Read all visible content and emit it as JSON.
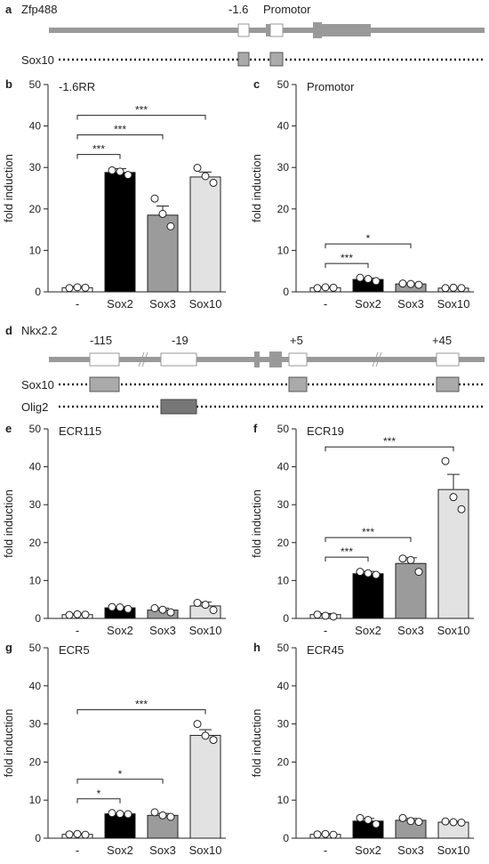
{
  "diagram_a": {
    "panel": "a",
    "gene": "Zfp488",
    "region_labels": [
      "-1.6",
      "Promotor"
    ],
    "factor": "Sox10"
  },
  "diagram_d": {
    "panel": "d",
    "gene": "Nkx2.2",
    "region_labels": [
      "-115",
      "-19",
      "+5",
      "+45"
    ],
    "factors": [
      "Sox10",
      "Olig2"
    ]
  },
  "colors": {
    "gene_line": "#999999",
    "sox10_box": "#aaaaaa",
    "olig2_box": "#777777",
    "bar_black": "#000000",
    "bar_mid": "#9b9b9b",
    "bar_light": "#e2e2e2",
    "bar_white": "#ffffff"
  },
  "chart_data": [
    {
      "panel": "b",
      "title": "-1.6RR",
      "type": "bar",
      "categories": [
        "-",
        "Sox2",
        "Sox3",
        "Sox10"
      ],
      "values": [
        1.0,
        28.8,
        18.5,
        27.7
      ],
      "errors": [
        0.3,
        0.9,
        2.2,
        1.2
      ],
      "points": [
        [
          0.9,
          1.1,
          1.0
        ],
        [
          29.3,
          29.0,
          28.2
        ],
        [
          22.5,
          18.8,
          15.8
        ],
        [
          29.9,
          27.9,
          26.3
        ]
      ],
      "ylabel": "fold induction",
      "ylim": [
        0,
        50
      ],
      "yticks": [
        0,
        10,
        20,
        30,
        40,
        50
      ],
      "significance": [
        {
          "from": 0,
          "to": 1,
          "label": "***"
        },
        {
          "from": 0,
          "to": 2,
          "label": "***"
        },
        {
          "from": 0,
          "to": 3,
          "label": "***"
        }
      ]
    },
    {
      "panel": "c",
      "title": "Promotor",
      "type": "bar",
      "categories": [
        "-",
        "Sox2",
        "Sox3",
        "Sox10"
      ],
      "values": [
        1.0,
        3.0,
        1.9,
        0.9
      ],
      "errors": [
        0.2,
        0.3,
        0.2,
        0.1
      ],
      "points": [
        [
          0.9,
          1.1,
          1.0
        ],
        [
          3.4,
          3.1,
          2.6
        ],
        [
          2.0,
          1.9,
          1.7
        ],
        [
          0.9,
          1.0,
          0.9
        ]
      ],
      "ylabel": "fold induction",
      "ylim": [
        0,
        50
      ],
      "yticks": [
        0,
        10,
        20,
        30,
        40,
        50
      ],
      "significance": [
        {
          "from": 0,
          "to": 1,
          "label": "***"
        },
        {
          "from": 0,
          "to": 2,
          "label": "*"
        }
      ]
    },
    {
      "panel": "e",
      "title": "ECR115",
      "type": "bar",
      "categories": [
        "-",
        "Sox2",
        "Sox3",
        "Sox10"
      ],
      "values": [
        1.0,
        2.8,
        2.2,
        3.3
      ],
      "errors": [
        0.2,
        0.3,
        0.5,
        1.0
      ],
      "points": [
        [
          0.9,
          1.1,
          1.0
        ],
        [
          3.0,
          2.9,
          2.5
        ],
        [
          2.7,
          2.3,
          1.6
        ],
        [
          4.1,
          3.6,
          2.2
        ]
      ],
      "ylabel": "fold induction",
      "ylim": [
        0,
        50
      ],
      "yticks": [
        0,
        10,
        20,
        30,
        40,
        50
      ],
      "significance": []
    },
    {
      "panel": "f",
      "title": "ECR19",
      "type": "bar",
      "categories": [
        "-",
        "Sox2",
        "Sox3",
        "Sox10"
      ],
      "values": [
        1.0,
        11.8,
        14.5,
        34.0
      ],
      "errors": [
        0.3,
        0.6,
        1.5,
        4.0
      ],
      "points": [
        [
          1.0,
          0.7,
          0.5
        ],
        [
          12.3,
          11.9,
          11.5
        ],
        [
          15.8,
          15.4,
          12.3
        ],
        [
          41.5,
          32.0,
          28.8
        ]
      ],
      "ylabel": "fold induction",
      "ylim": [
        0,
        50
      ],
      "yticks": [
        0,
        10,
        20,
        30,
        40,
        50
      ],
      "significance": [
        {
          "from": 0,
          "to": 1,
          "label": "***"
        },
        {
          "from": 0,
          "to": 2,
          "label": "***"
        },
        {
          "from": 0,
          "to": 3,
          "label": "***"
        }
      ]
    },
    {
      "panel": "g",
      "title": "ECR5",
      "type": "bar",
      "categories": [
        "-",
        "Sox2",
        "Sox3",
        "Sox10"
      ],
      "values": [
        1.0,
        6.4,
        6.0,
        27.0
      ],
      "errors": [
        0.2,
        0.2,
        0.5,
        1.5
      ],
      "points": [
        [
          1.0,
          1.1,
          0.9
        ],
        [
          6.6,
          6.4,
          6.3
        ],
        [
          6.8,
          6.0,
          5.6
        ],
        [
          30.0,
          26.9,
          25.8
        ]
      ],
      "ylabel": "fold induction",
      "ylim": [
        0,
        50
      ],
      "yticks": [
        0,
        10,
        20,
        30,
        40,
        50
      ],
      "significance": [
        {
          "from": 0,
          "to": 1,
          "label": "*"
        },
        {
          "from": 0,
          "to": 2,
          "label": "*"
        },
        {
          "from": 0,
          "to": 3,
          "label": "***"
        }
      ]
    },
    {
      "panel": "h",
      "title": "ECR45",
      "type": "bar",
      "categories": [
        "-",
        "Sox2",
        "Sox3",
        "Sox10"
      ],
      "values": [
        1.0,
        4.5,
        4.7,
        4.2
      ],
      "errors": [
        0.1,
        0.7,
        0.5,
        0.2
      ],
      "points": [
        [
          1.0,
          1.1,
          0.9
        ],
        [
          5.3,
          4.8,
          3.7
        ],
        [
          5.3,
          4.5,
          4.3
        ],
        [
          4.4,
          4.2,
          4.1
        ]
      ],
      "ylabel": "fold induction",
      "ylim": [
        0,
        50
      ],
      "yticks": [
        0,
        10,
        20,
        30,
        40,
        50
      ],
      "significance": []
    }
  ]
}
